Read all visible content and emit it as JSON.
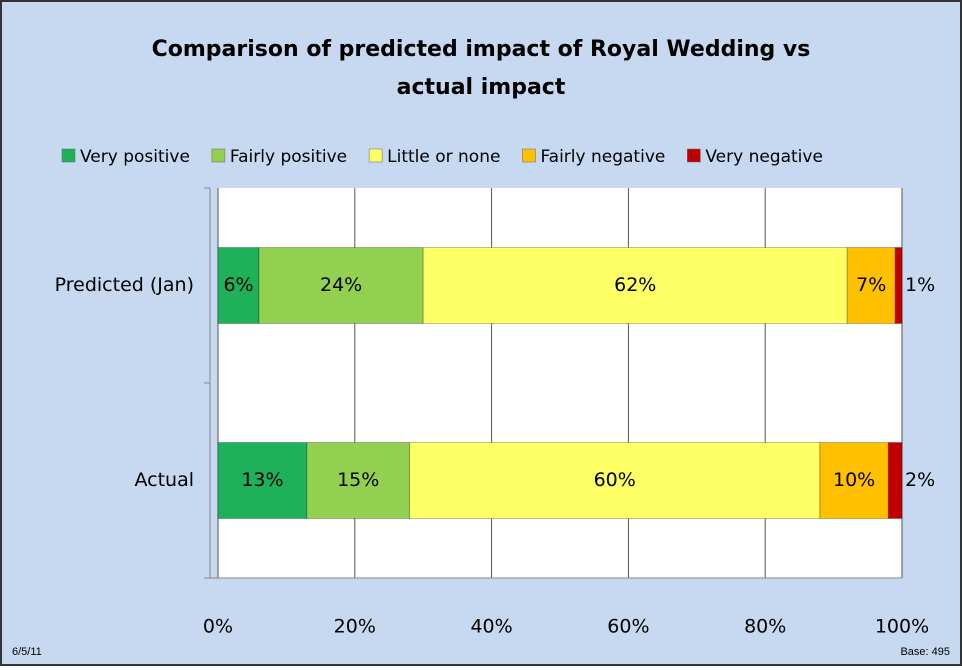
{
  "chart_data": {
    "type": "stacked_barh",
    "title": "Comparison of predicted impact of Royal Wedding  vs actual impact",
    "categories": [
      "Predicted (Jan)",
      "Actual"
    ],
    "series": [
      {
        "name": "Very positive",
        "color": "#1fb05a",
        "values": [
          6,
          13
        ],
        "value_labels": [
          "6%",
          "13%"
        ]
      },
      {
        "name": "Fairly positive",
        "color": "#92d050",
        "values": [
          24,
          15
        ],
        "value_labels": [
          "24%",
          "15%"
        ]
      },
      {
        "name": "Little or none",
        "color": "#ffff66",
        "values": [
          62,
          60
        ],
        "value_labels": [
          "62%",
          "60%"
        ]
      },
      {
        "name": "Fairly negative",
        "color": "#ffc000",
        "values": [
          7,
          10
        ],
        "value_labels": [
          "7%",
          "10%"
        ]
      },
      {
        "name": "Very negative",
        "color": "#c00000",
        "values": [
          1,
          2
        ],
        "value_labels": [
          "1%",
          "2%"
        ]
      }
    ],
    "xlim": [
      0,
      100
    ],
    "xticks": [
      {
        "value": 0,
        "label": "0%"
      },
      {
        "value": 20,
        "label": "20%"
      },
      {
        "value": 40,
        "label": "40%"
      },
      {
        "value": 60,
        "label": "60%"
      },
      {
        "value": 80,
        "label": "80%"
      },
      {
        "value": 100,
        "label": "100%"
      }
    ],
    "grid": true,
    "legend": "top",
    "footer_left": "6/5/11",
    "footer_right": "Base: 495"
  }
}
